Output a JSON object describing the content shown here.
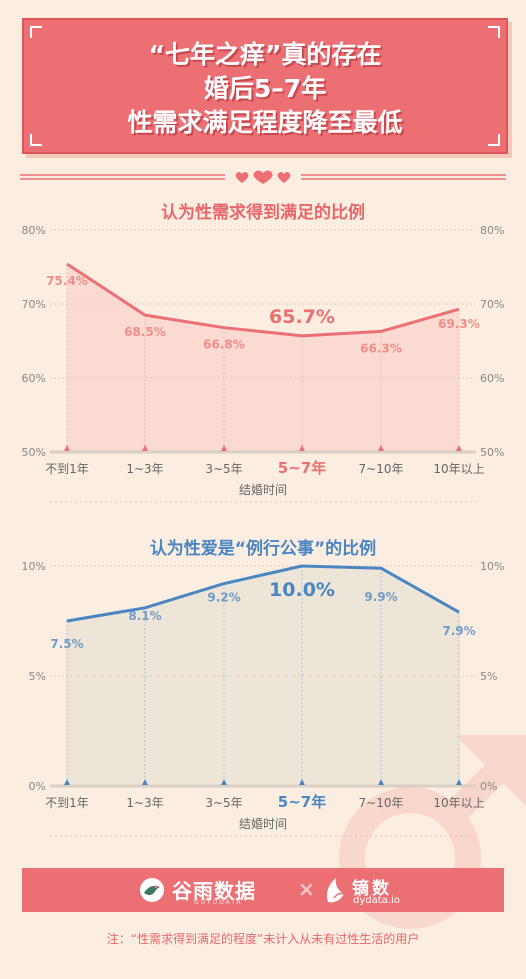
{
  "header": {
    "line1": "“七年之痒”真的存在",
    "line2": "婚后5–7年",
    "line3": "性需求满足程度降至最低"
  },
  "colors": {
    "pink": "#ec6f74",
    "pink_fill": "#f9d7cf",
    "blue": "#4b86c2",
    "blue_fill": "#e6e0d4",
    "background": "#fbeee1"
  },
  "chart_data": [
    {
      "type": "area",
      "title": "认为性需求得到满足的比例",
      "xlabel": "结婚时间",
      "ylabel": "",
      "categories": [
        "不到1年",
        "1~3年",
        "3~5年",
        "5~7年",
        "7~10年",
        "10年以上"
      ],
      "values": [
        75.4,
        68.5,
        66.8,
        65.7,
        66.3,
        69.3
      ],
      "value_labels": [
        "75.4%",
        "68.5%",
        "66.8%",
        "65.7%",
        "66.3%",
        "69.3%"
      ],
      "highlight_category": "5~7年",
      "ylim": [
        50,
        80
      ],
      "yticks": [
        "50%",
        "60%",
        "70%",
        "80%"
      ],
      "grid": true,
      "color": "#ec6f74"
    },
    {
      "type": "area",
      "title": "认为性爱是“例行公事”的比例",
      "xlabel": "结婚时间",
      "ylabel": "",
      "categories": [
        "不到1年",
        "1~3年",
        "3~5年",
        "5~7年",
        "7~10年",
        "10年以上"
      ],
      "values": [
        7.5,
        8.1,
        9.2,
        10.0,
        9.9,
        7.9
      ],
      "value_labels": [
        "7.5%",
        "8.1%",
        "9.2%",
        "10.0%",
        "9.9%",
        "7.9%"
      ],
      "highlight_category": "5~7年",
      "ylim": [
        0,
        10
      ],
      "yticks": [
        "0%",
        "5%",
        "10%"
      ],
      "grid": true,
      "color": "#4b86c2"
    }
  ],
  "logos": {
    "brand1": "谷雨数据",
    "brand1_sub": "GUYUDATA",
    "separator": "×",
    "brand2": "镝数",
    "brand2_sub": "dydata.io"
  },
  "footnote": "注：“性需求得到满足的程度”未计入从未有过性生活的用户"
}
